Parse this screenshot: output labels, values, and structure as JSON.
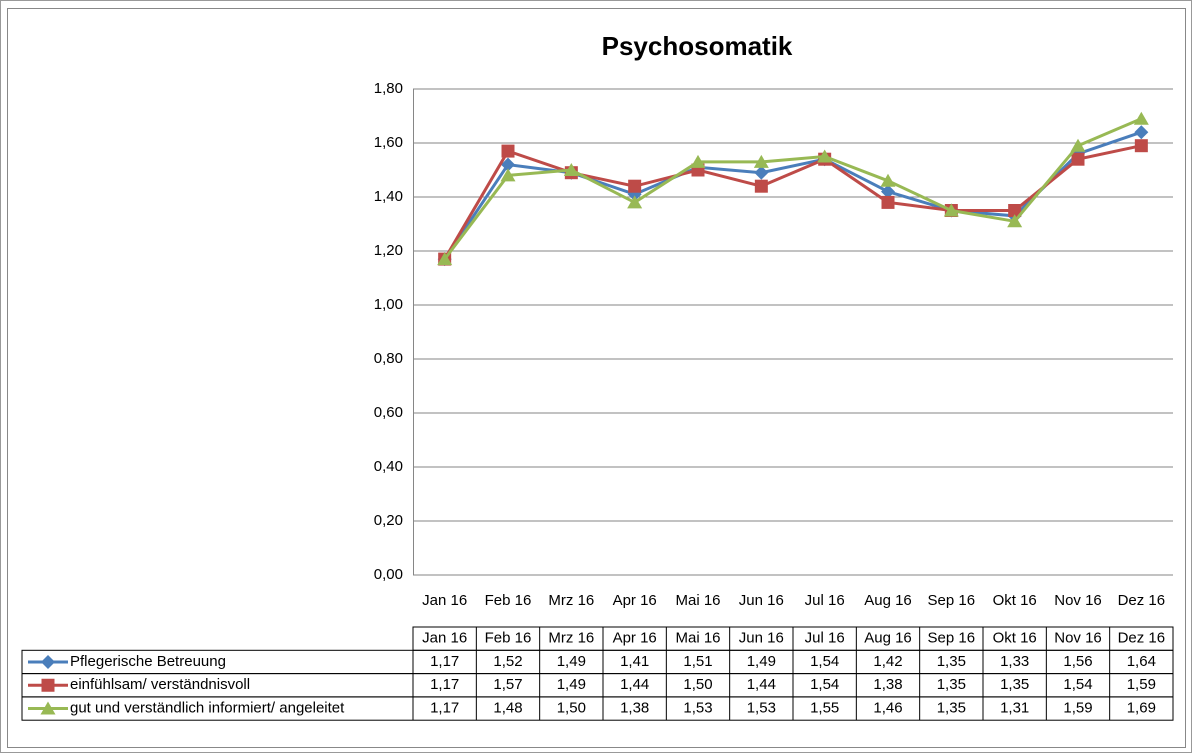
{
  "chart_data": {
    "type": "line",
    "title": "Psychosomatik",
    "categories": [
      "Jan 16",
      "Feb 16",
      "Mrz 16",
      "Apr 16",
      "Mai 16",
      "Jun 16",
      "Jul 16",
      "Aug 16",
      "Sep 16",
      "Okt 16",
      "Nov 16",
      "Dez 16"
    ],
    "series": [
      {
        "name": "Pflegerische Betreuung",
        "color": "#4a7ebb",
        "marker": "diamond",
        "values": [
          1.17,
          1.52,
          1.49,
          1.41,
          1.51,
          1.49,
          1.54,
          1.42,
          1.35,
          1.33,
          1.56,
          1.64
        ],
        "value_labels": [
          "1,17",
          "1,52",
          "1,49",
          "1,41",
          "1,51",
          "1,49",
          "1,54",
          "1,42",
          "1,35",
          "1,33",
          "1,56",
          "1,64"
        ]
      },
      {
        "name": "einfühlsam/ verständnisvoll",
        "color": "#be4b48",
        "marker": "square",
        "values": [
          1.17,
          1.57,
          1.49,
          1.44,
          1.5,
          1.44,
          1.54,
          1.38,
          1.35,
          1.35,
          1.54,
          1.59
        ],
        "value_labels": [
          "1,17",
          "1,57",
          "1,49",
          "1,44",
          "1,50",
          "1,44",
          "1,54",
          "1,38",
          "1,35",
          "1,35",
          "1,54",
          "1,59"
        ]
      },
      {
        "name": "gut und verständlich informiert/ angeleitet",
        "color": "#98b954",
        "marker": "triangle",
        "values": [
          1.17,
          1.48,
          1.5,
          1.38,
          1.53,
          1.53,
          1.55,
          1.46,
          1.35,
          1.31,
          1.59,
          1.69
        ],
        "value_labels": [
          "1,17",
          "1,48",
          "1,50",
          "1,38",
          "1,53",
          "1,53",
          "1,55",
          "1,46",
          "1,35",
          "1,31",
          "1,59",
          "1,69"
        ]
      }
    ],
    "ylim": [
      0,
      1.8
    ],
    "yticks": [
      {
        "value": 0,
        "label": "0,00"
      },
      {
        "value": 0.2,
        "label": "0,20"
      },
      {
        "value": 0.4,
        "label": "0,40"
      },
      {
        "value": 0.6,
        "label": "0,60"
      },
      {
        "value": 0.8,
        "label": "0,80"
      },
      {
        "value": 1.0,
        "label": "1,00"
      },
      {
        "value": 1.2,
        "label": "1,20"
      },
      {
        "value": 1.4,
        "label": "1,40"
      },
      {
        "value": 1.6,
        "label": "1,60"
      },
      {
        "value": 1.8,
        "label": "1,80"
      }
    ],
    "grid": true
  }
}
